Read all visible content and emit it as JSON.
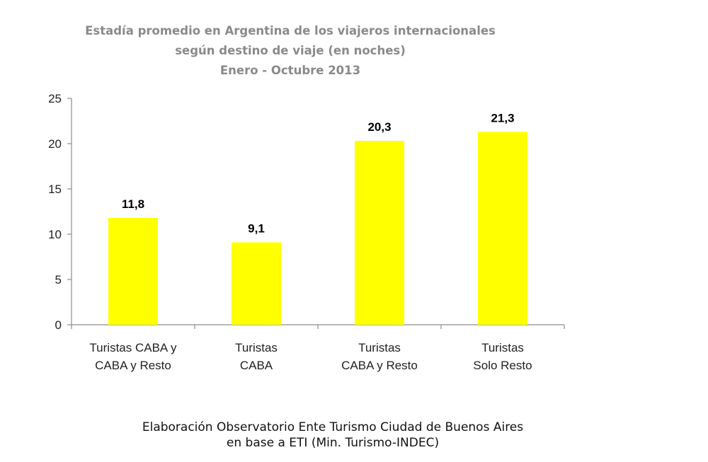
{
  "chart_data": {
    "type": "bar",
    "title": [
      "Estadía promedio en Argentina de los viajeros internacionales",
      "según destino de viaje (en noches)",
      "Enero - Octubre 2013"
    ],
    "categories": [
      [
        "Turistas CABA y",
        "CABA y Resto"
      ],
      [
        "Turistas",
        "CABA"
      ],
      [
        "Turistas",
        "CABA y Resto"
      ],
      [
        "Turistas",
        "Solo Resto"
      ]
    ],
    "values": [
      11.8,
      9.1,
      20.3,
      21.3
    ],
    "value_labels": [
      "11,8",
      "9,1",
      "20,3",
      "21,3"
    ],
    "ylim": [
      0,
      25
    ],
    "yticks": [
      0,
      5,
      10,
      15,
      20,
      25
    ],
    "xlabel": "",
    "ylabel": "",
    "grid": false,
    "bar_color": "#ffff00"
  },
  "footer": {
    "line1": "Elaboración  Observatorio Ente Turismo  Ciudad de Buenos Aires",
    "line2": "en base a ETI (Min. Turismo-INDEC)"
  }
}
